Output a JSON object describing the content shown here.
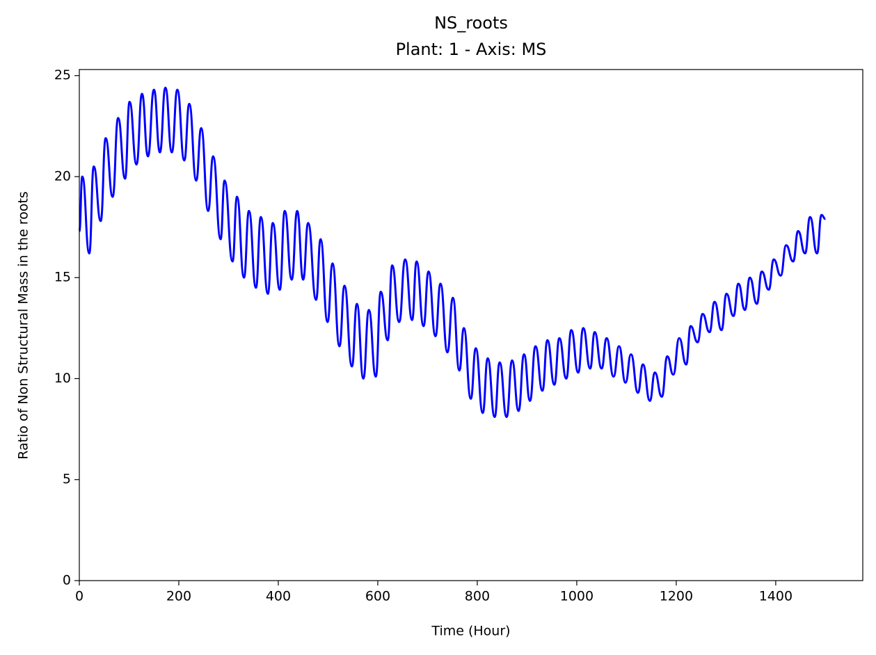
{
  "chart_data": {
    "type": "line",
    "title": "NS_roots",
    "subtitle": "Plant: 1 - Axis: MS",
    "x_label": "Time (Hour)",
    "y_label": "Ratio of Non Structural Mass in the roots",
    "xlim": [
      0,
      1575
    ],
    "xticks": [
      0,
      200,
      400,
      600,
      800,
      1000,
      1200,
      1400
    ],
    "ylim": [
      0,
      25.3
    ],
    "yticks": [
      0,
      5,
      10,
      15,
      20,
      25
    ],
    "x": [
      0,
      6,
      20,
      29,
      43,
      53,
      67,
      78,
      92,
      101,
      115,
      126,
      138,
      150,
      162,
      173,
      186,
      197,
      211,
      221,
      235,
      245,
      259,
      269,
      284,
      292,
      308,
      317,
      331,
      341,
      355,
      365,
      379,
      389,
      403,
      413,
      427,
      438,
      450,
      460,
      476,
      485,
      499,
      509,
      523,
      533,
      548,
      558,
      571,
      582,
      596,
      606,
      620,
      629,
      643,
      655,
      669,
      678,
      692,
      702,
      716,
      726,
      740,
      751,
      764,
      773,
      787,
      797,
      811,
      821,
      835,
      845,
      859,
      870,
      883,
      894,
      906,
      917,
      931,
      941,
      955,
      965,
      979,
      989,
      1003,
      1013,
      1027,
      1036,
      1050,
      1060,
      1074,
      1085,
      1098,
      1109,
      1123,
      1133,
      1147,
      1157,
      1171,
      1182,
      1194,
      1206,
      1220,
      1229,
      1243,
      1253,
      1267,
      1277,
      1291,
      1301,
      1315,
      1325,
      1338,
      1348,
      1362,
      1372,
      1386,
      1396,
      1410,
      1421,
      1435,
      1445,
      1459,
      1469,
      1483,
      1492,
      1500
    ],
    "series": [
      {
        "color": "#0000ff",
        "values": [
          17.3,
          20,
          16.2,
          20.5,
          17.8,
          21.9,
          19,
          22.9,
          19.9,
          23.7,
          20.6,
          24.1,
          21,
          24.3,
          21.2,
          24.4,
          21.2,
          24.3,
          20.8,
          23.6,
          19.8,
          22.4,
          18.3,
          21,
          16.9,
          19.8,
          15.8,
          19,
          15,
          18.3,
          14.5,
          18,
          14.2,
          17.7,
          14.4,
          18.3,
          14.9,
          18.3,
          14.9,
          17.7,
          13.9,
          16.9,
          12.8,
          15.7,
          11.6,
          14.6,
          10.6,
          13.7,
          10,
          13.4,
          10.1,
          14.3,
          11.9,
          15.6,
          12.8,
          15.9,
          12.9,
          15.8,
          12.6,
          15.3,
          12.1,
          14.7,
          11.3,
          14,
          10.4,
          12.5,
          9,
          11.5,
          8.3,
          11,
          8.1,
          10.8,
          8.1,
          10.9,
          8.4,
          11.2,
          8.9,
          11.6,
          9.4,
          11.9,
          9.7,
          12,
          10,
          12.4,
          10.3,
          12.5,
          10.5,
          12.3,
          10.5,
          12,
          10.1,
          11.6,
          9.8,
          11.2,
          9.3,
          10.7,
          8.9,
          10.3,
          9.1,
          11.1,
          10.2,
          12,
          10.7,
          12.6,
          11.8,
          13.2,
          12.3,
          13.8,
          12.4,
          14.2,
          13.1,
          14.7,
          13.4,
          15,
          13.7,
          15.3,
          14.4,
          15.9,
          15.1,
          16.6,
          15.8,
          17.3,
          16.2,
          18,
          16.2,
          18.1,
          17.9
        ]
      }
    ]
  }
}
